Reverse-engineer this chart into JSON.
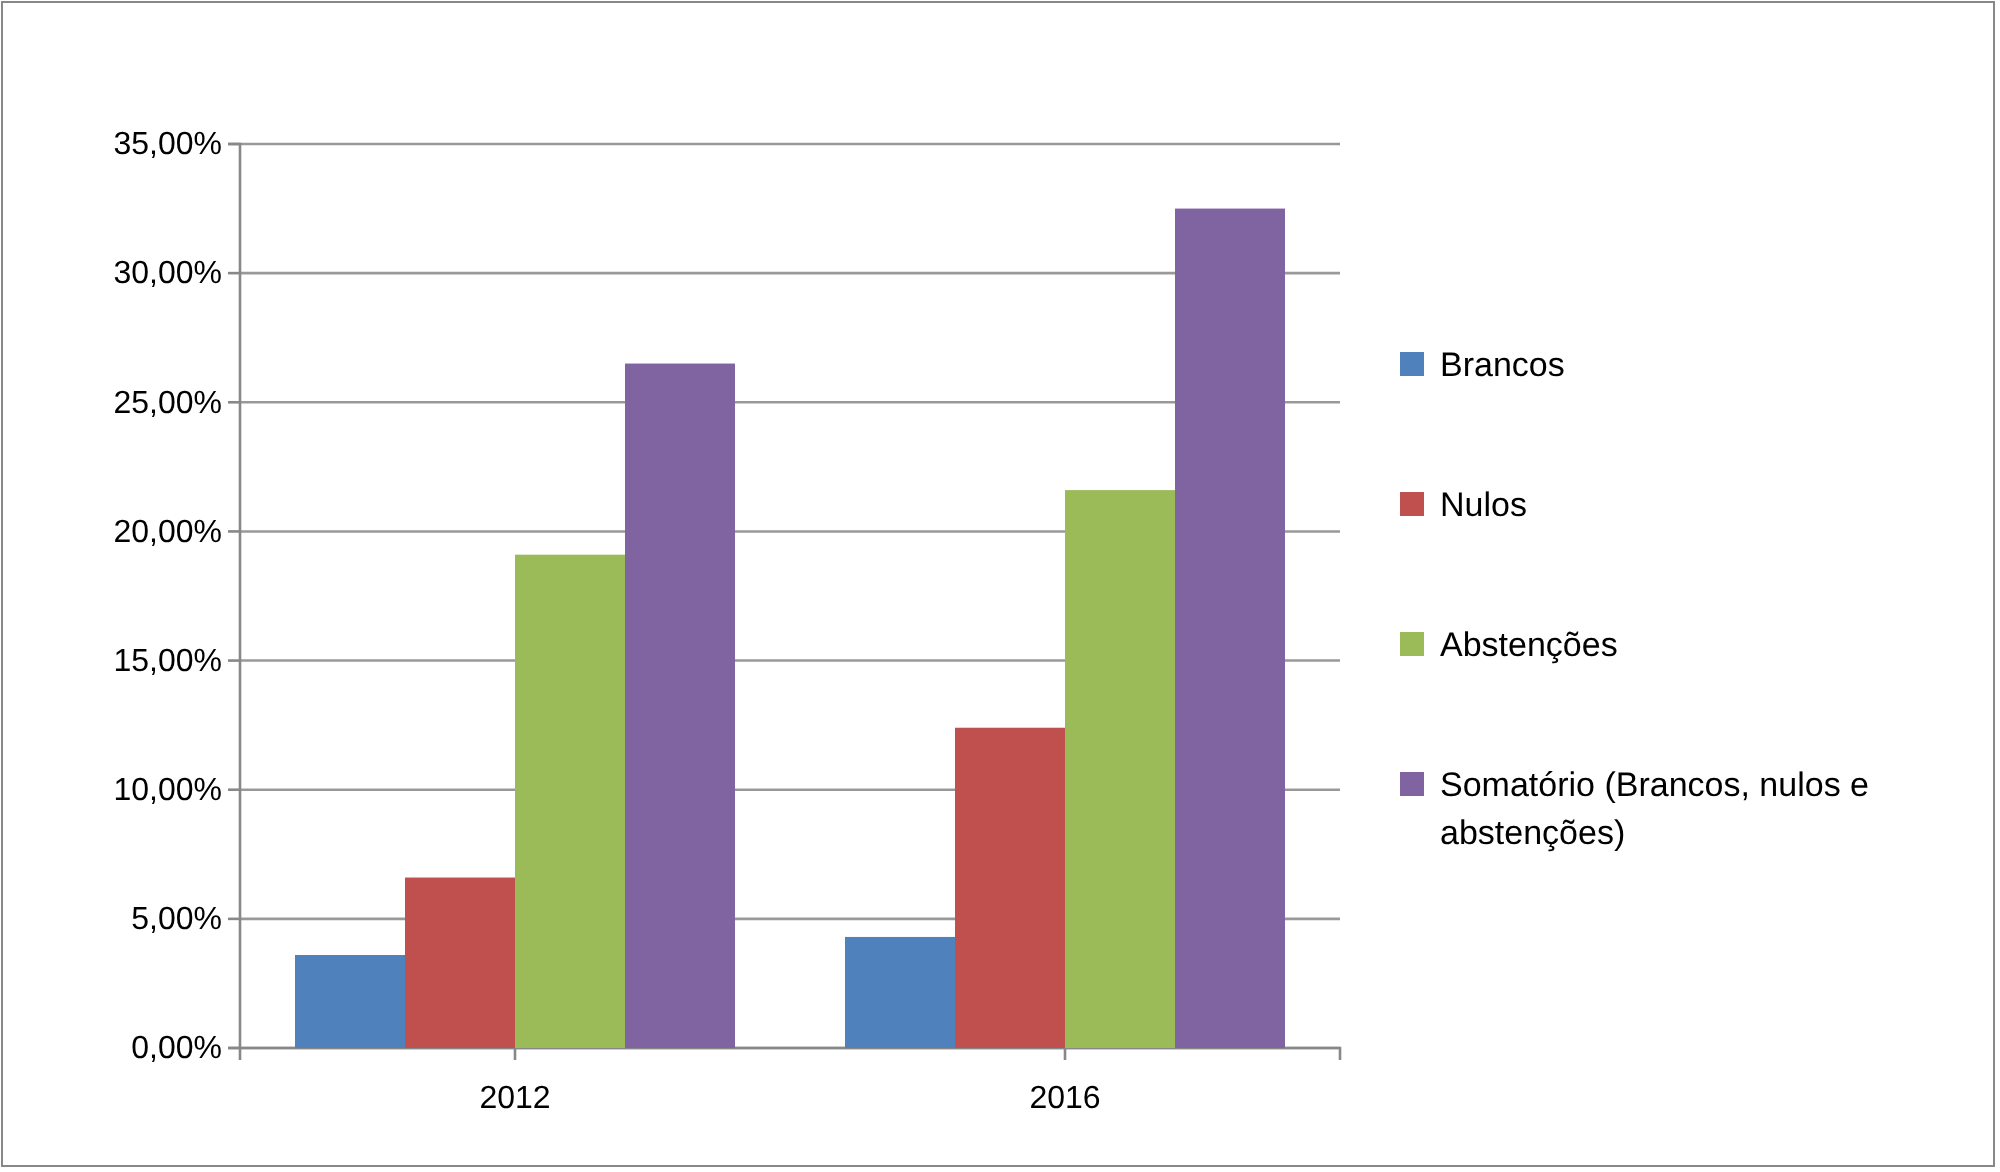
{
  "chart_data": {
    "type": "bar",
    "categories": [
      "2012",
      "2016"
    ],
    "series": [
      {
        "name": "Brancos",
        "color": "#4f81bd",
        "values": [
          3.6,
          4.3
        ]
      },
      {
        "name": "Nulos",
        "color": "#c0504d",
        "values": [
          6.6,
          12.4
        ]
      },
      {
        "name": "Abstenções",
        "color": "#9bbb59",
        "values": [
          19.1,
          21.6
        ]
      },
      {
        "name": "Somatório (Brancos, nulos e abstenções)",
        "color": "#8064a2",
        "values": [
          26.5,
          32.5
        ]
      }
    ],
    "ylim": [
      0,
      35
    ],
    "yticks": [
      {
        "value": 0,
        "label": "0,00%"
      },
      {
        "value": 5,
        "label": "5,00%"
      },
      {
        "value": 10,
        "label": "10,00%"
      },
      {
        "value": 15,
        "label": "15,00%"
      },
      {
        "value": 20,
        "label": "20,00%"
      },
      {
        "value": 25,
        "label": "25,00%"
      },
      {
        "value": 30,
        "label": "30,00%"
      },
      {
        "value": 35,
        "label": "35,00%"
      }
    ],
    "grid": "y",
    "legend": "right"
  }
}
